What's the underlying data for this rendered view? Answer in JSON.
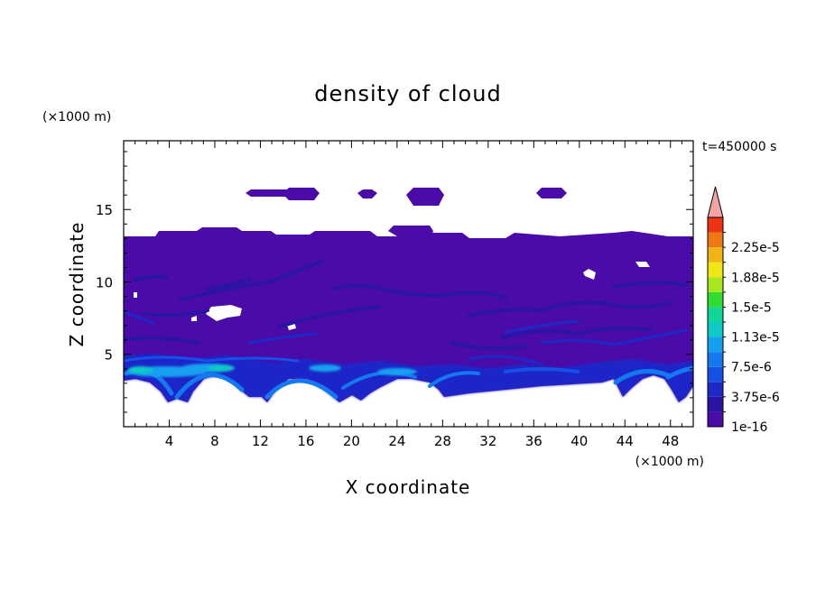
{
  "chart_data": {
    "type": "heatmap",
    "title": "density of cloud",
    "time_label": "t=450000 s",
    "xlabel": "X coordinate",
    "ylabel": "Z coordinate",
    "x_unit": "(×1000 m)",
    "y_unit": "(×1000 m)",
    "xlim": [
      0,
      50
    ],
    "ylim": [
      0,
      19.75
    ],
    "x_ticks": [
      4,
      8,
      12,
      16,
      20,
      24,
      28,
      32,
      36,
      40,
      44,
      48
    ],
    "y_ticks": [
      5,
      10,
      15
    ],
    "colorbar": {
      "labels": [
        "1e-16",
        "3.75e-6",
        "7.5e-6",
        "1.13e-5",
        "1.5e-5",
        "1.88e-5",
        "2.25e-5"
      ],
      "levels": [
        1e-16,
        1.875e-06,
        3.75e-06,
        5.625e-06,
        7.5e-06,
        9.375e-06,
        1.125e-05,
        1.3125e-05,
        1.5e-05,
        1.6875e-05,
        1.875e-05,
        2.0625e-05,
        2.25e-05,
        2.4375e-05
      ],
      "colors": [
        "#4b0ba8",
        "#2a14a6",
        "#1e28c8",
        "#1650e6",
        "#1478f0",
        "#14a0f0",
        "#10c8c8",
        "#10d69a",
        "#30dc30",
        "#a8e61e",
        "#f0e614",
        "#f0b414",
        "#f07814",
        "#ee3214"
      ],
      "overflow_color": "#f4a4a4"
    },
    "regions": {
      "main_cloud_deck": {
        "x": [
          0,
          50
        ],
        "z_bottom": 3.3,
        "z_top": 13.5
      },
      "upper_patches": [
        {
          "x": [
            11.5,
            15.5
          ],
          "z": [
            16,
            16.4
          ]
        },
        {
          "x": [
            14.5,
            17.8
          ],
          "z": [
            15.8,
            16.8
          ]
        },
        {
          "x": [
            20.8,
            22.3
          ],
          "z": [
            15.9,
            16.5
          ]
        },
        {
          "x": [
            24.8,
            28.3
          ],
          "z": [
            15.6,
            16.8
          ]
        },
        {
          "x": [
            36.8,
            39.2
          ],
          "z": [
            15.8,
            16.6
          ]
        },
        {
          "x": [
            23.3,
            28.4
          ],
          "z": [
            12.8,
            14.7
          ]
        }
      ],
      "max_density_region": {
        "x": [
          8,
          12
        ],
        "z": [
          3.3,
          4.5
        ],
        "level_index": 6
      }
    }
  }
}
